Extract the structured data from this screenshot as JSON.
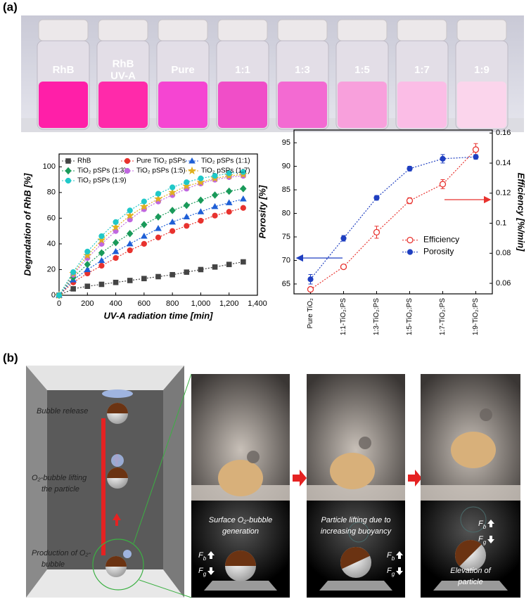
{
  "panel_labels": [
    "(a)",
    "(b)"
  ],
  "vials": [
    [
      "RhB"
    ],
    [
      "RhB",
      "UV-A"
    ],
    [
      "Pure"
    ],
    [
      "1:1"
    ],
    [
      "1:3"
    ],
    [
      "1:5"
    ],
    [
      "1:7"
    ],
    [
      "1:9"
    ]
  ],
  "chart_data": [
    {
      "type": "line",
      "x_label": "UV-A radiation time [min]",
      "y_label": "Degradation of RhB [%]",
      "x": [
        0,
        100,
        200,
        300,
        400,
        500,
        600,
        700,
        800,
        900,
        1000,
        1100,
        1200,
        1300
      ],
      "xlim": [
        0,
        1400
      ],
      "xticks": [
        0,
        200,
        400,
        600,
        800,
        {
          "value": 1000,
          "label": "1,000"
        },
        {
          "value": 1200,
          "label": "1,200"
        },
        {
          "value": 1400,
          "label": "1,400"
        }
      ],
      "ylim": [
        0,
        110
      ],
      "yticks": [
        0,
        20,
        40,
        60,
        80,
        100
      ],
      "legend": "upper left",
      "series": [
        {
          "name": "RhB",
          "color": "#444444",
          "marker": "square",
          "values": [
            0,
            5,
            7,
            8.5,
            10,
            11.5,
            13,
            14.5,
            16,
            18,
            20,
            22,
            24,
            26
          ]
        },
        {
          "name": "Pure TiO₂ pSPs",
          "color": "#e8322e",
          "marker": "circle",
          "values": [
            0,
            10,
            17,
            23,
            29,
            35,
            40,
            45,
            50,
            54,
            58,
            62,
            65,
            68
          ]
        },
        {
          "name": "TiO₂ pSPs (1:1)",
          "color": "#1f5fd6",
          "marker": "triangle",
          "values": [
            0,
            12,
            20,
            27,
            34,
            40,
            46,
            52,
            57,
            61,
            65,
            69,
            72,
            75
          ]
        },
        {
          "name": "TiO₂ pSPs (1:3)",
          "color": "#1a9a5a",
          "marker": "diamond",
          "values": [
            0,
            14,
            24,
            33,
            41,
            48,
            55,
            61,
            66,
            70,
            74,
            78,
            81,
            83
          ]
        },
        {
          "name": "TiO₂ pSPs (1:5)",
          "color": "#c067e0",
          "marker": "circle",
          "values": [
            0,
            16,
            29,
            40,
            50,
            59,
            67,
            73,
            78,
            83,
            87,
            90,
            92,
            93
          ]
        },
        {
          "name": "TiO₂ pSPs (1:7)",
          "color": "#e0b020",
          "marker": "star",
          "values": [
            0,
            17,
            31,
            43,
            53,
            62,
            69,
            75,
            80,
            85,
            88,
            91,
            93,
            94
          ]
        },
        {
          "name": "TiO₂ pSPs (1:9)",
          "color": "#20c8c8",
          "marker": "circle",
          "values": [
            0,
            18,
            34,
            46,
            57,
            66,
            73,
            79,
            84,
            88,
            91,
            93,
            95,
            96
          ]
        }
      ]
    },
    {
      "type": "line",
      "y_label": "Porosity [%]",
      "y2_label": "Efficiency [%/min]",
      "categories": [
        "Pure TiO₂",
        "1:1-TiO₂:PS",
        "1:3-TiO₂:PS",
        "1:5-TiO₂:PS",
        "1:7-TiO₂:PS",
        "1:9-TiO₂:PS"
      ],
      "ylim": [
        62.9,
        97.7
      ],
      "yticks": [
        65,
        70,
        75,
        80,
        85,
        90,
        95
      ],
      "y2lim": [
        0.053,
        0.162
      ],
      "y2ticks": [
        0.06,
        0.08,
        0.1,
        0.12,
        0.14,
        0.16
      ],
      "legend": "center right",
      "series": [
        {
          "name": "Efficiency",
          "color": "#e8322e",
          "marker": "open-circle",
          "axis": "y2",
          "values": [
            0.056,
            0.071,
            0.094,
            0.115,
            0.126,
            0.149
          ],
          "errors": [
            0.001,
            0.001,
            0.004,
            0.002,
            0.003,
            0.004
          ]
        },
        {
          "name": "Porosity",
          "color": "#1f3fc0",
          "marker": "circle",
          "values": [
            66,
            74.7,
            83.3,
            89.5,
            91.6,
            92.0
          ],
          "errors": [
            1,
            0.6,
            0.5,
            0.5,
            0.9,
            0.5
          ]
        }
      ]
    }
  ],
  "diagram": {
    "left_labels": [
      [
        "Bubble release"
      ],
      [
        "O₂-bubble lifting",
        "the particle"
      ],
      [
        "Production of O₂-",
        "bubble"
      ]
    ],
    "step_labels": [
      [
        "Surface O₂-bubble",
        "generation"
      ],
      [
        "Particle lifting due to",
        "increasing buoyancy"
      ],
      [
        "Elevation of",
        "particle"
      ]
    ],
    "force_symbol": "F",
    "buoyancy_subscript": "b",
    "gravity_subscript": "g"
  }
}
